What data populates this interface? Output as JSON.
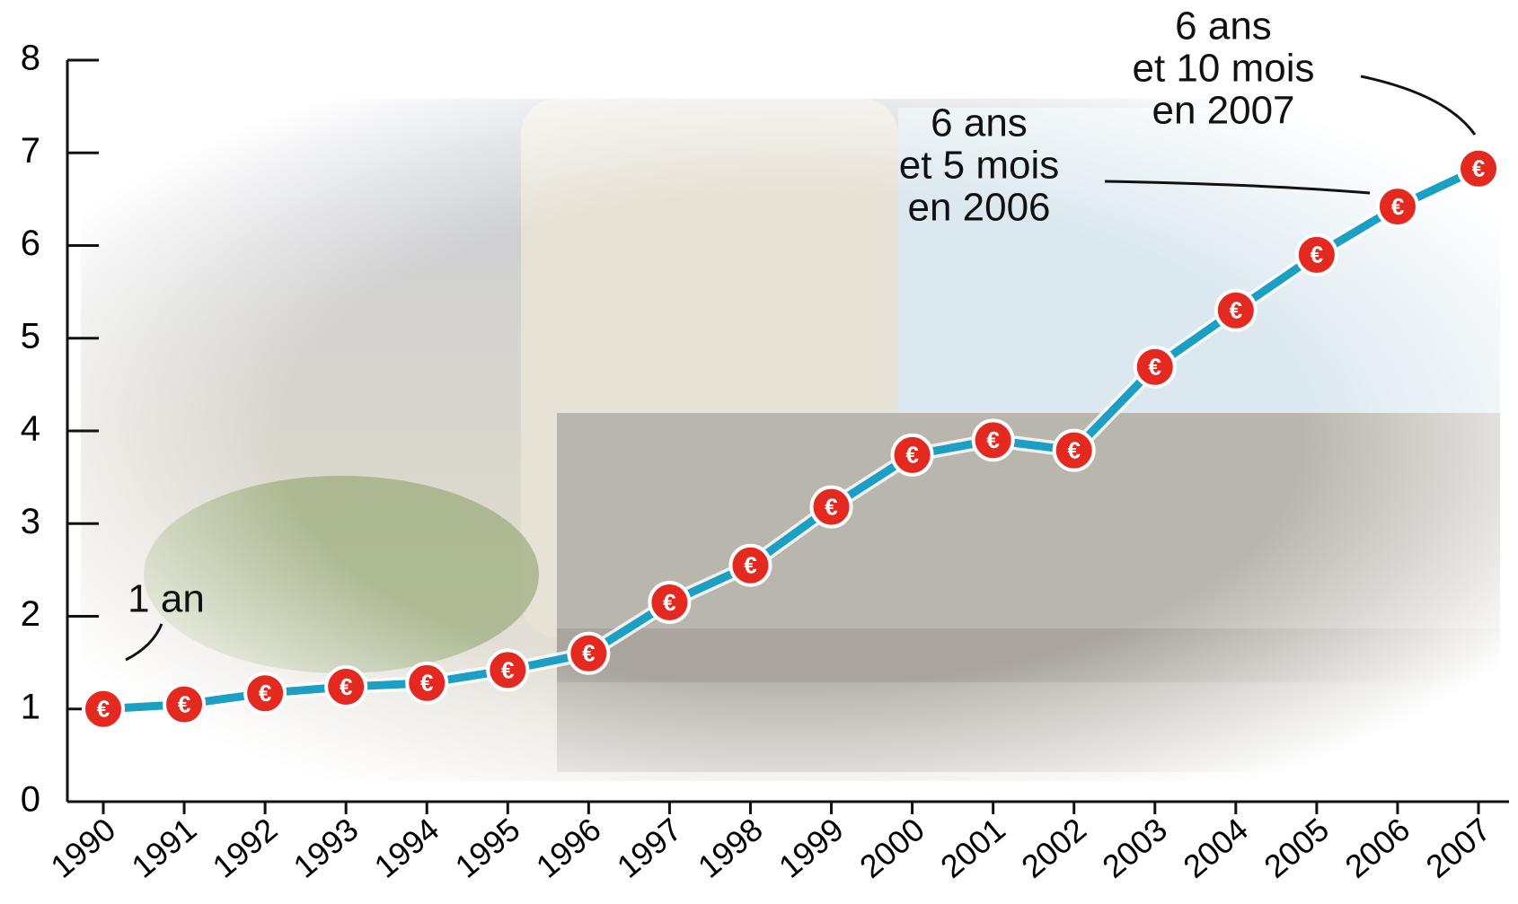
{
  "chart_data": {
    "type": "line",
    "categories": [
      "1990",
      "1991",
      "1992",
      "1993",
      "1994",
      "1995",
      "1996",
      "1997",
      "1998",
      "1999",
      "2000",
      "2001",
      "2002",
      "2003",
      "2004",
      "2005",
      "2006",
      "2007"
    ],
    "series": [
      {
        "color": "#1b9fc2",
        "values": [
          1.0,
          1.05,
          1.17,
          1.24,
          1.28,
          1.42,
          1.6,
          2.15,
          2.55,
          3.18,
          3.74,
          3.9,
          3.79,
          4.69,
          5.3,
          5.9,
          6.42,
          6.83
        ]
      }
    ],
    "marker_color": "#e42a20",
    "marker_symbol": "€",
    "ylim": [
      0,
      8
    ],
    "yticks": [
      0,
      1,
      2,
      3,
      4,
      5,
      6,
      7,
      8
    ],
    "annotations": [
      {
        "lines": [
          "1 an"
        ]
      },
      {
        "lines": [
          "6 ans",
          "et 5 mois",
          "en 2006"
        ]
      },
      {
        "lines": [
          "6 ans",
          "et 10 mois",
          "en 2007"
        ]
      }
    ]
  }
}
